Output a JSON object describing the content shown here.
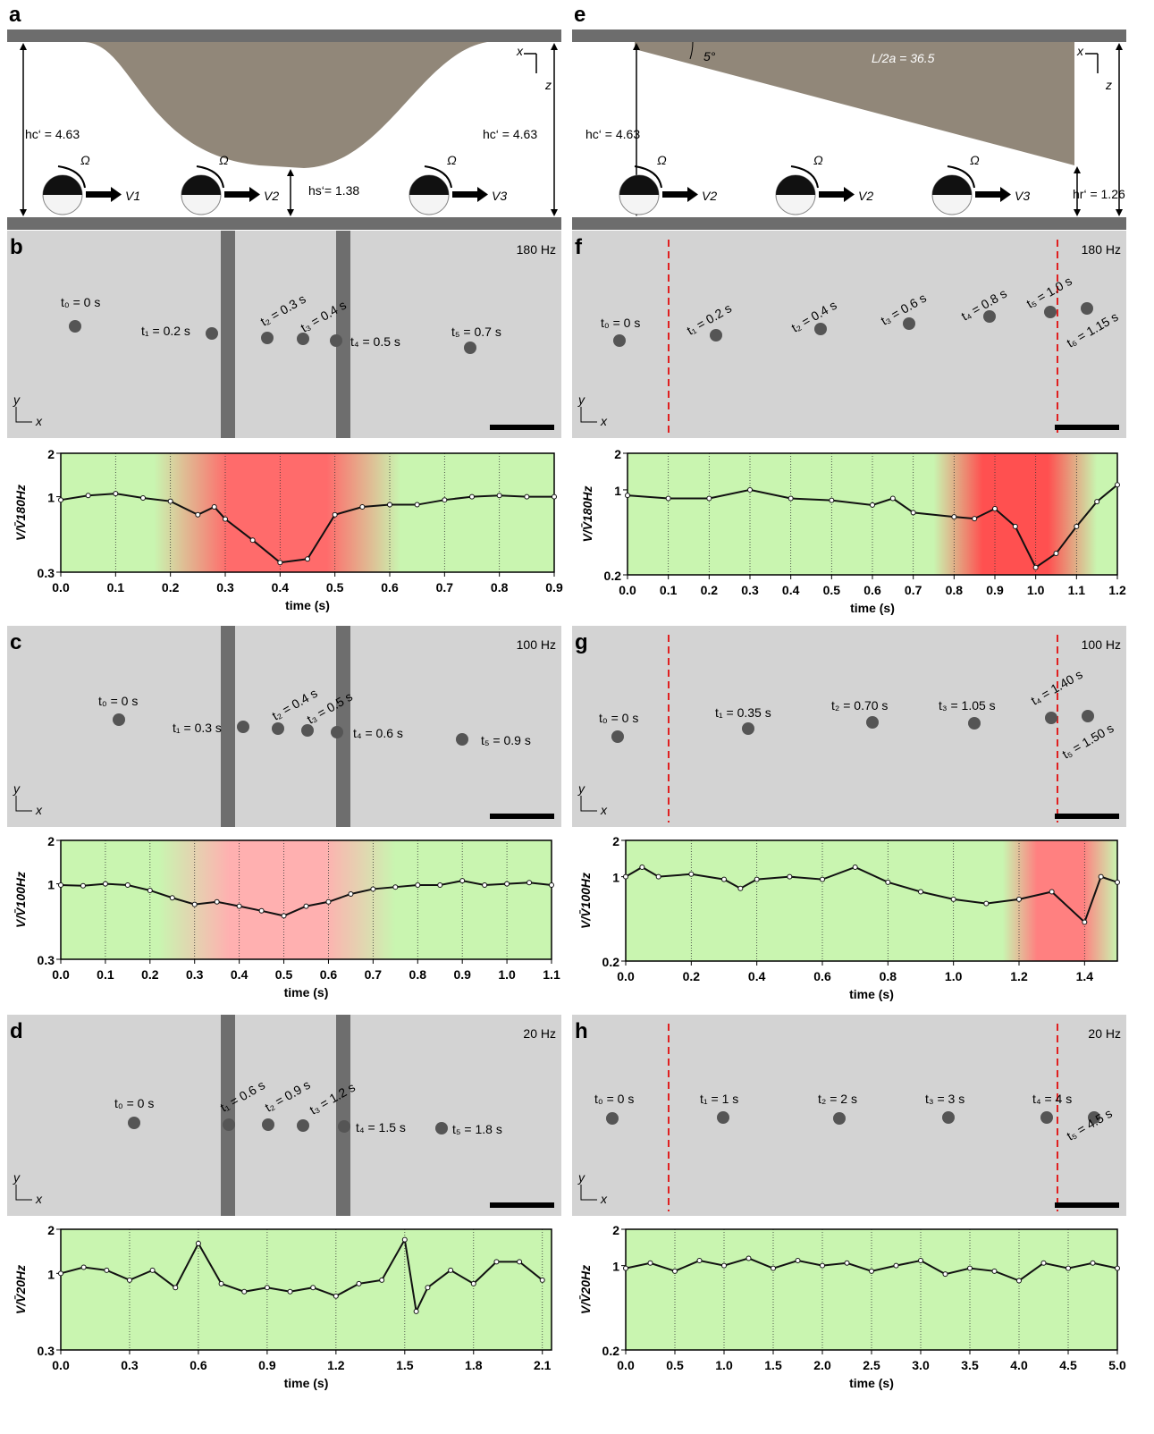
{
  "figure": {
    "panel_letters": [
      "a",
      "b",
      "c",
      "d",
      "e",
      "f",
      "g",
      "h"
    ],
    "schematic_a": {
      "hc_left": "hc‘ = 4.63",
      "hc_right": "hc‘ = 4.63",
      "hs": "hs‘= 1.38",
      "omega": "Ω",
      "velocities": [
        "V1",
        "V2",
        "V3"
      ],
      "axes": [
        "x",
        "z"
      ]
    },
    "schematic_e": {
      "hc": "hc‘ = 4.63",
      "hr": "hr‘ = 1.26",
      "angle": "5°",
      "ratio": "L/2a = 36.5",
      "omega": "Ω",
      "velocities": [
        "V2",
        "V2",
        "V3"
      ],
      "axes": [
        "x",
        "z"
      ]
    },
    "image_axes": [
      "y",
      "x"
    ],
    "images": [
      {
        "frequency": "180 Hz",
        "times": [
          "t₀ = 0 s",
          "t₁ = 0.2 s",
          "t₂ = 0.3 s",
          "t₃ = 0.4 s",
          "t₄ = 0.5 s",
          "t₅ = 0.7 s"
        ]
      },
      {
        "frequency": "100 Hz",
        "times": [
          "t₀ = 0 s",
          "t₁ = 0.3 s",
          "t₂ = 0.4 s",
          "t₃ = 0.5 s",
          "t₄ = 0.6 s",
          "t₅ = 0.9 s"
        ]
      },
      {
        "frequency": "20 Hz",
        "times": [
          "t₀ = 0 s",
          "t₁ = 0.6 s",
          "t₂ = 0.9 s",
          "t₃ = 1.2 s",
          "t₄ = 1.5 s",
          "t₅ = 1.8 s"
        ]
      },
      {
        "frequency": "180 Hz",
        "times": [
          "t₀ = 0 s",
          "t₁ = 0.2 s",
          "t₂ = 0.4 s",
          "t₃ = 0.6 s",
          "t₄ = 0.8 s",
          "t₅ = 1.0 s",
          "t₆ = 1.15 s"
        ]
      },
      {
        "frequency": "100 Hz",
        "times": [
          "t₀ = 0 s",
          "t₁ = 0.35 s",
          "t₂ = 0.70 s",
          "t₃ = 1.05 s",
          "t₄ = 1.40 s",
          "t₅ = 1.50 s"
        ]
      },
      {
        "frequency": "20 Hz",
        "times": [
          "t₀ = 0 s",
          "t₁ = 1 s",
          "t₂ = 2 s",
          "t₃ = 3 s",
          "t₄ = 4 s",
          "t₅ = 4.5 s"
        ]
      }
    ]
  },
  "chart_data": [
    {
      "type": "line",
      "xlabel": "time (s)",
      "ylabel": "V/V̄180Hz",
      "log_y": true,
      "grid": true,
      "background": "#c9f5b0",
      "highlight": {
        "range": [
          0.17,
          0.62
        ],
        "color": "#ff6b6b"
      },
      "xlim": [
        0,
        0.9
      ],
      "xticks": [
        {
          "value": 0,
          "label": "0.0"
        },
        0.1,
        0.2,
        0.3,
        0.4,
        0.5,
        0.6,
        0.7,
        0.8,
        0.9
      ],
      "ylim": [
        0.3,
        2
      ],
      "yticks": [
        0.3,
        1,
        2
      ],
      "x": [
        0,
        0.05,
        0.1,
        0.15,
        0.2,
        0.25,
        0.28,
        0.3,
        0.35,
        0.4,
        0.45,
        0.5,
        0.55,
        0.6,
        0.65,
        0.7,
        0.75,
        0.8,
        0.85,
        0.9
      ],
      "series": [
        {
          "color": "#111111",
          "values": [
            0.95,
            1.02,
            1.05,
            0.98,
            0.93,
            0.75,
            0.85,
            0.7,
            0.5,
            0.35,
            0.37,
            0.75,
            0.85,
            0.88,
            0.88,
            0.95,
            1.0,
            1.02,
            1.0,
            1.0
          ]
        }
      ]
    },
    {
      "type": "line",
      "xlabel": "time (s)",
      "ylabel": "V/V̄100Hz",
      "log_y": true,
      "grid": true,
      "background": "#c9f5b0",
      "highlight": {
        "range": [
          0.22,
          0.75
        ],
        "color": "#ffb0b0"
      },
      "xlim": [
        0,
        1.1
      ],
      "xticks": [
        {
          "value": 0,
          "label": "0.0"
        },
        0.1,
        0.2,
        0.3,
        0.4,
        0.5,
        0.6,
        0.7,
        0.8,
        0.9,
        {
          "value": 1,
          "label": "1.0"
        },
        1.1
      ],
      "ylim": [
        0.3,
        2
      ],
      "yticks": [
        0.3,
        1,
        2
      ],
      "x": [
        0,
        0.05,
        0.1,
        0.15,
        0.2,
        0.25,
        0.3,
        0.35,
        0.4,
        0.45,
        0.5,
        0.55,
        0.6,
        0.65,
        0.7,
        0.75,
        0.8,
        0.85,
        0.9,
        0.95,
        1,
        1.05,
        1.1
      ],
      "series": [
        {
          "color": "#111111",
          "values": [
            0.98,
            0.97,
            1.0,
            0.98,
            0.9,
            0.8,
            0.72,
            0.75,
            0.7,
            0.65,
            0.6,
            0.7,
            0.75,
            0.85,
            0.92,
            0.95,
            0.98,
            0.98,
            1.05,
            0.98,
            1.0,
            1.02,
            0.98
          ]
        }
      ]
    },
    {
      "type": "line",
      "xlabel": "time (s)",
      "ylabel": "V/V̄20Hz",
      "log_y": true,
      "grid": true,
      "background": "#c9f5b0",
      "xlim": [
        0,
        2.14
      ],
      "xticks": [
        {
          "value": 0,
          "label": "0.0"
        },
        0.3,
        0.6,
        0.9,
        1.2,
        1.5,
        1.8,
        2.1
      ],
      "ylim": [
        0.3,
        2
      ],
      "yticks": [
        0.3,
        1,
        2
      ],
      "x": [
        0,
        0.1,
        0.2,
        0.3,
        0.4,
        0.5,
        0.6,
        0.7,
        0.8,
        0.9,
        1,
        1.1,
        1.2,
        1.3,
        1.4,
        1.5,
        1.55,
        1.6,
        1.7,
        1.8,
        1.9,
        2,
        2.1
      ],
      "series": [
        {
          "color": "#111111",
          "values": [
            1.0,
            1.1,
            1.05,
            0.9,
            1.05,
            0.8,
            1.6,
            0.85,
            0.75,
            0.8,
            0.75,
            0.8,
            0.7,
            0.85,
            0.9,
            1.7,
            0.55,
            0.8,
            1.05,
            0.85,
            1.2,
            1.2,
            0.9
          ]
        }
      ]
    },
    {
      "type": "line",
      "xlabel": "time (s)",
      "ylabel": "V/V̄180Hz",
      "log_y": true,
      "grid": true,
      "background": "#c9f5b0",
      "highlight": {
        "range": [
          0.75,
          1.15
        ],
        "color": "#ff5050"
      },
      "xlim": [
        0,
        1.2
      ],
      "xticks": [
        {
          "value": 0,
          "label": "0.0"
        },
        0.1,
        0.2,
        0.3,
        0.4,
        0.5,
        0.6,
        0.7,
        0.8,
        0.9,
        {
          "value": 1,
          "label": "1.0"
        },
        1.1,
        1.2
      ],
      "ylim": [
        0.2,
        2
      ],
      "yticks": [
        0.2,
        1,
        2
      ],
      "x": [
        0,
        0.1,
        0.2,
        0.3,
        0.4,
        0.5,
        0.6,
        0.65,
        0.7,
        0.8,
        0.85,
        0.9,
        0.95,
        1,
        1.05,
        1.1,
        1.15,
        1.2
      ],
      "series": [
        {
          "color": "#111111",
          "values": [
            0.9,
            0.85,
            0.85,
            1.0,
            0.85,
            0.82,
            0.75,
            0.85,
            0.65,
            0.6,
            0.58,
            0.7,
            0.5,
            0.23,
            0.3,
            0.5,
            0.8,
            1.1
          ]
        }
      ]
    },
    {
      "type": "line",
      "xlabel": "time (s)",
      "ylabel": "V/V̄100Hz",
      "log_y": true,
      "grid": true,
      "background": "#c9f5b0",
      "highlight": {
        "range": [
          1.15,
          1.5
        ],
        "color": "#ff8080"
      },
      "xlim": [
        0,
        1.5
      ],
      "xticks": [
        {
          "value": 0,
          "label": "0.0"
        },
        0.2,
        0.4,
        0.6,
        0.8,
        {
          "value": 1,
          "label": "1.0"
        },
        1.2,
        1.4
      ],
      "ylim": [
        0.2,
        2
      ],
      "yticks": [
        0.2,
        1,
        2
      ],
      "x": [
        0,
        0.05,
        0.1,
        0.2,
        0.3,
        0.35,
        0.4,
        0.5,
        0.6,
        0.7,
        0.8,
        0.9,
        1,
        1.1,
        1.2,
        1.3,
        1.4,
        1.45,
        1.5
      ],
      "series": [
        {
          "color": "#111111",
          "values": [
            1.0,
            1.2,
            1.0,
            1.05,
            0.95,
            0.8,
            0.95,
            1.0,
            0.95,
            1.2,
            0.9,
            0.75,
            0.65,
            0.6,
            0.65,
            0.75,
            0.42,
            1.0,
            0.9
          ]
        }
      ]
    },
    {
      "type": "line",
      "xlabel": "time (s)",
      "ylabel": "V/V̄20Hz",
      "log_y": true,
      "grid": true,
      "background": "#c9f5b0",
      "xlim": [
        0,
        5
      ],
      "xticks": [
        {
          "value": 0,
          "label": "0.0"
        },
        0.5,
        {
          "value": 1,
          "label": "1.0"
        },
        1.5,
        {
          "value": 2,
          "label": "2.0"
        },
        2.5,
        {
          "value": 3,
          "label": "3.0"
        },
        3.5,
        {
          "value": 4,
          "label": "4.0"
        },
        4.5,
        {
          "value": 5,
          "label": "5.0"
        }
      ],
      "ylim": [
        0.2,
        2
      ],
      "yticks": [
        0.2,
        1,
        2
      ],
      "x": [
        0,
        0.25,
        0.5,
        0.75,
        1,
        1.25,
        1.5,
        1.75,
        2,
        2.25,
        2.5,
        2.75,
        3,
        3.25,
        3.5,
        3.75,
        4,
        4.25,
        4.5,
        4.75,
        5
      ],
      "series": [
        {
          "color": "#111111",
          "values": [
            0.95,
            1.05,
            0.9,
            1.1,
            1.0,
            1.15,
            0.95,
            1.1,
            1.0,
            1.05,
            0.9,
            1.0,
            1.1,
            0.85,
            0.95,
            0.9,
            0.75,
            1.05,
            0.95,
            1.05,
            0.95
          ]
        }
      ]
    }
  ]
}
